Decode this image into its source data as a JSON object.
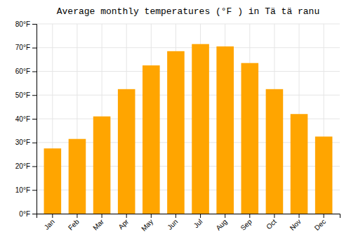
{
  "chart_data": {
    "type": "bar",
    "title": "Average monthly temperatures (°F ) in Tä tä ranu",
    "categories": [
      "Jan",
      "Feb",
      "Mar",
      "Apr",
      "May",
      "Jun",
      "Jul",
      "Aug",
      "Sep",
      "Oct",
      "Nov",
      "Dec"
    ],
    "values": [
      27.5,
      31.5,
      41.0,
      52.5,
      62.5,
      68.5,
      71.5,
      70.5,
      63.5,
      52.5,
      42.0,
      32.5
    ],
    "color": "#FFA500",
    "ylim": [
      0,
      80
    ],
    "yticks": [
      {
        "value": 0,
        "label": "0°F"
      },
      {
        "value": 10,
        "label": "10°F"
      },
      {
        "value": 20,
        "label": "20°F"
      },
      {
        "value": 30,
        "label": "30°F"
      },
      {
        "value": 40,
        "label": "40°F"
      },
      {
        "value": 50,
        "label": "50°F"
      },
      {
        "value": 60,
        "label": "60°F"
      },
      {
        "value": 70,
        "label": "70°F"
      },
      {
        "value": 80,
        "label": "80°F"
      }
    ],
    "grid": true
  }
}
